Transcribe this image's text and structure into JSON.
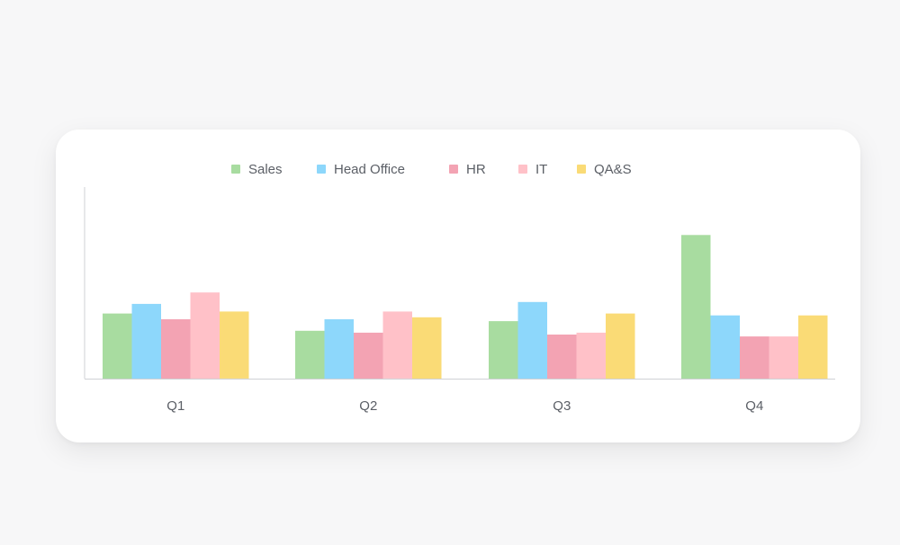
{
  "chart_data": {
    "type": "bar",
    "title": "",
    "xlabel": "",
    "ylabel": "",
    "categories": [
      "Q1",
      "Q2",
      "Q3",
      "Q4"
    ],
    "series": [
      {
        "name": "Sales",
        "color": "#a8dca0",
        "values": [
          34,
          25,
          30,
          75
        ]
      },
      {
        "name": "Head Office",
        "color": "#8dd7fb",
        "values": [
          39,
          31,
          40,
          33
        ]
      },
      {
        "name": "HR",
        "color": "#f3a3b3",
        "values": [
          31,
          24,
          23,
          22
        ]
      },
      {
        "name": "IT",
        "color": "#ffc1c8",
        "values": [
          45,
          35,
          24,
          22
        ]
      },
      {
        "name": "QA&S",
        "color": "#fadb76",
        "values": [
          35,
          32,
          34,
          33
        ]
      }
    ],
    "ylim": [
      0,
      100
    ],
    "grid": false,
    "legend": "top-center"
  }
}
